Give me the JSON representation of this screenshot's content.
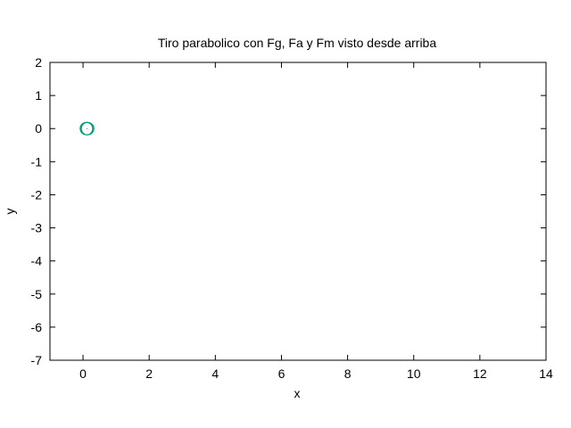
{
  "chart_data": {
    "type": "scatter",
    "title": "Tiro parabolico con Fg, Fa y Fm visto desde arriba",
    "xlabel": "x",
    "ylabel": "y",
    "xlim": [
      -1,
      14
    ],
    "ylim": [
      -7,
      2
    ],
    "xticks": [
      "0",
      "2",
      "4",
      "6",
      "8",
      "10",
      "12",
      "14"
    ],
    "yticks": [
      "2",
      "1",
      "0",
      "-1",
      "-2",
      "-3",
      "-4",
      "-5",
      "-6",
      "-7"
    ],
    "grid": false,
    "legend": "none",
    "series": [
      {
        "color": "#009e73",
        "marker": "circle",
        "points": [
          {
            "x": 0.1,
            "y": 0.0
          },
          {
            "x": 0.12,
            "y": 0.0
          },
          {
            "x": 0.14,
            "y": 0.0
          }
        ]
      }
    ],
    "trail_color": "#d94fb0"
  }
}
